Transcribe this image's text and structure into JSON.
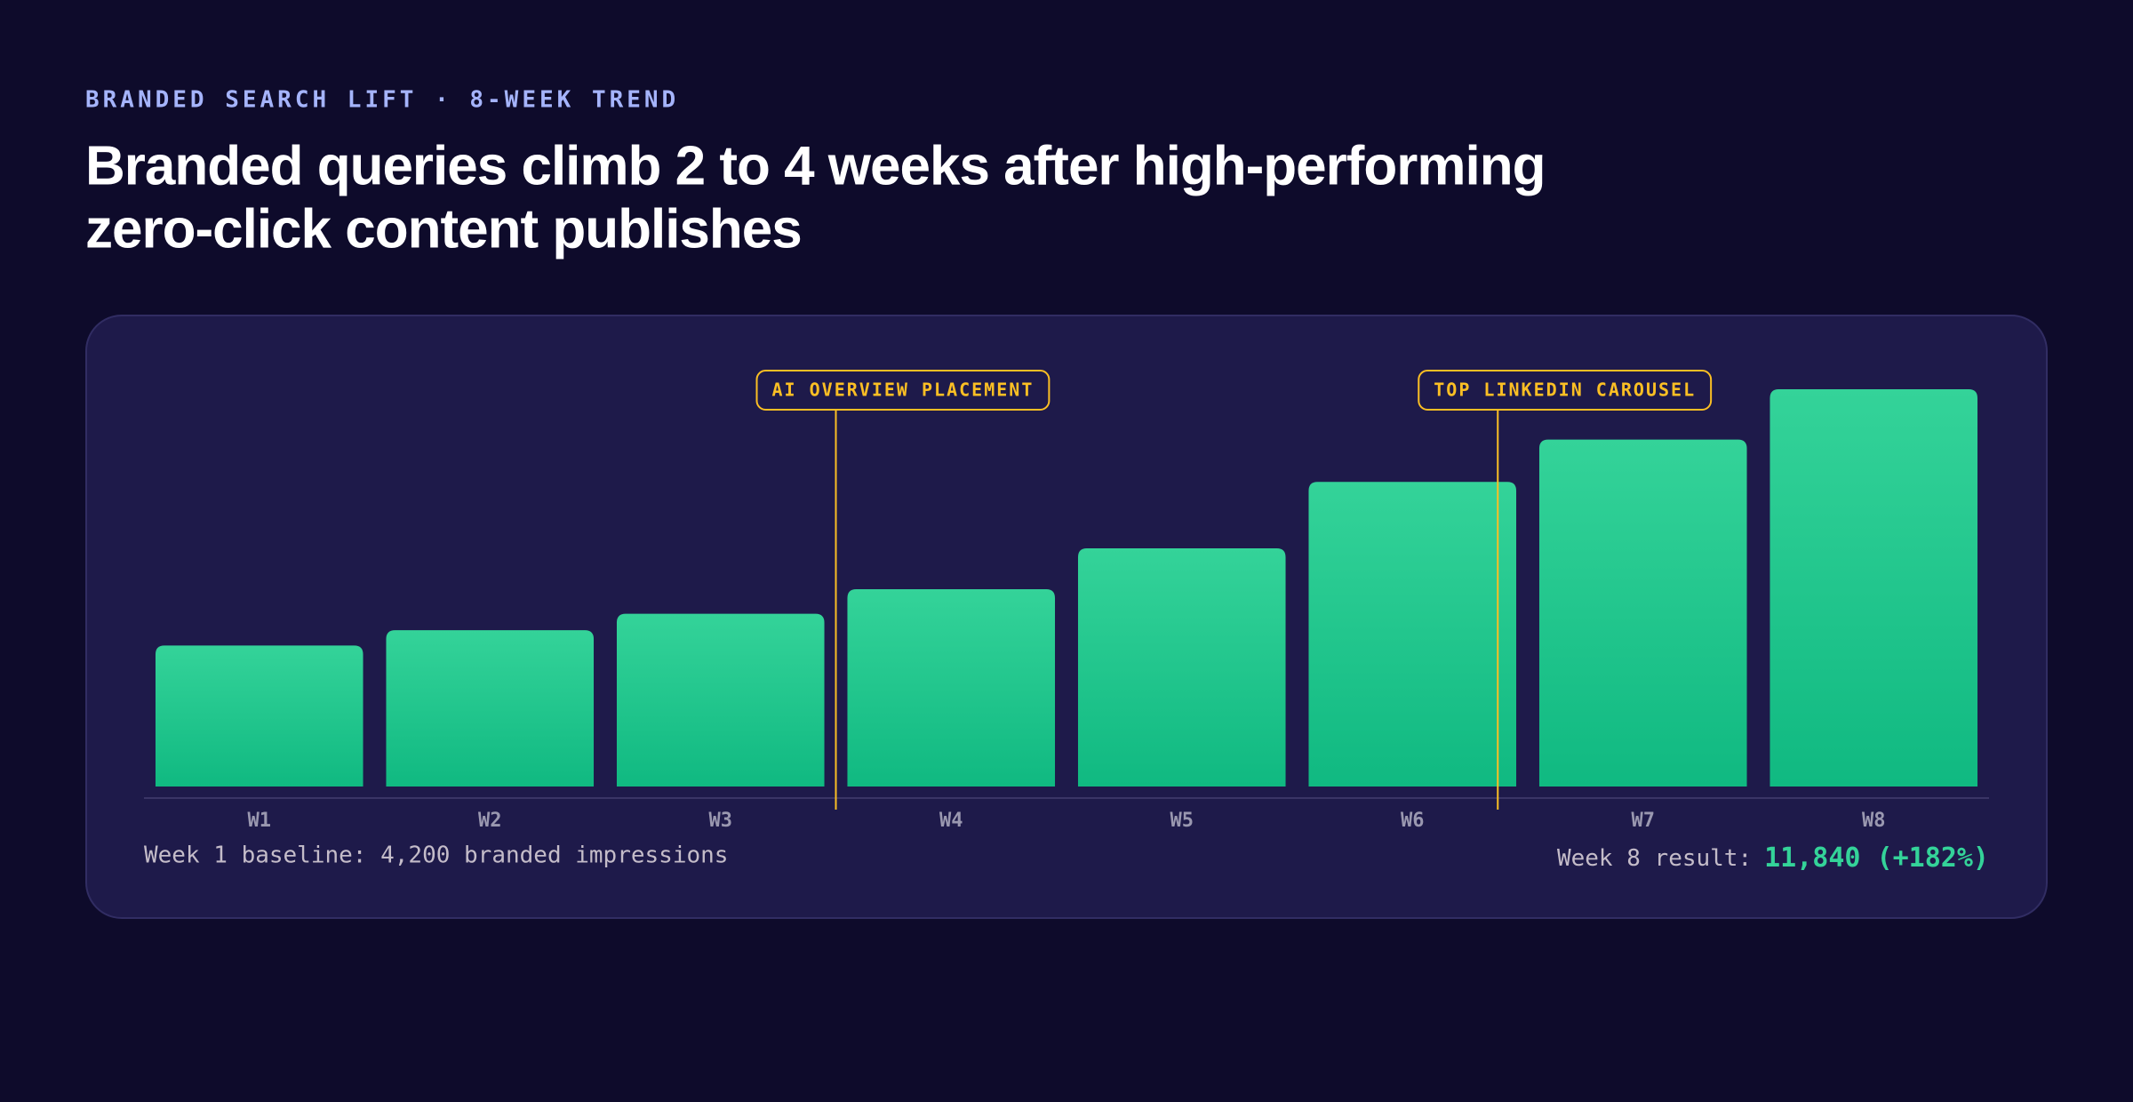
{
  "chart_data": {
    "type": "bar",
    "subtitle": "BRANDED SEARCH LIFT · 8-WEEK TREND",
    "title": [
      "Branded queries climb 2 to 4 weeks after high-performing",
      "zero-click content publishes"
    ],
    "categories": [
      "W1",
      "W2",
      "W3",
      "W4",
      "W5",
      "W6",
      "W7",
      "W8"
    ],
    "values": [
      4200,
      4660,
      5150,
      5880,
      7100,
      9080,
      10340,
      11840
    ],
    "color": "#10b981",
    "annotations": [
      {
        "label": "AI OVERVIEW PLACEMENT",
        "x": 3
      },
      {
        "label": "TOP LINKEDIN CAROUSEL",
        "x": 5.87
      }
    ],
    "annotation_color": "#fbbf24",
    "footer": {
      "left": "Week 1 baseline: 4,200 branded impressions",
      "right": {
        "label": "Week 8 result:",
        "value": "11,840 (+182%)"
      }
    }
  }
}
